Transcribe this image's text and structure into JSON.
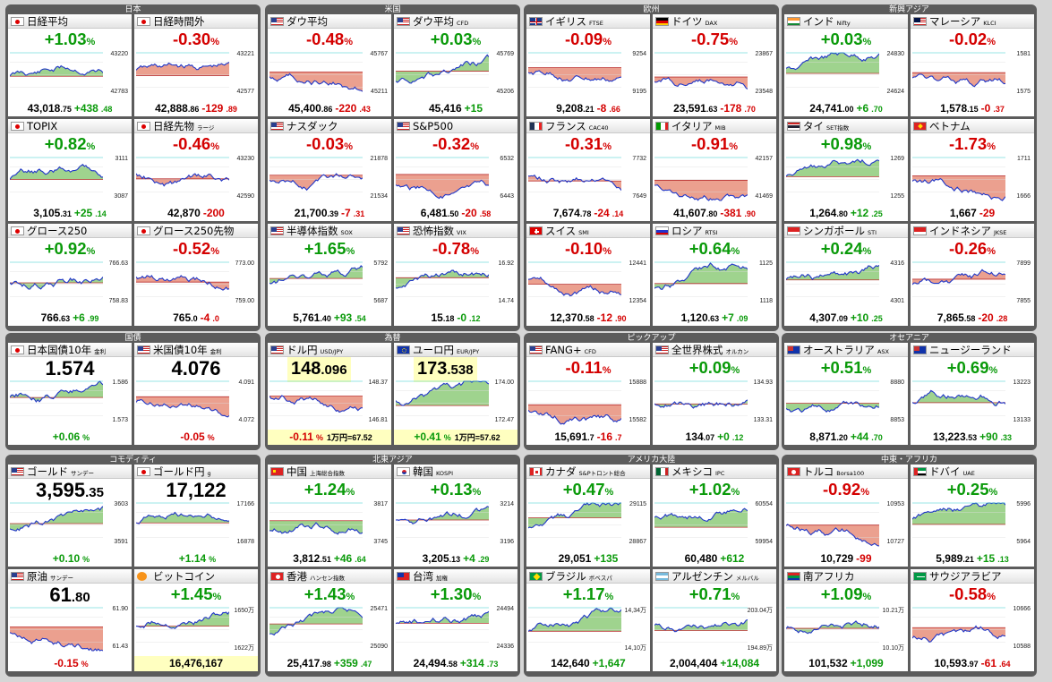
{
  "groups": [
    {
      "title": "日本",
      "cards": [
        {
          "name": "日経平均",
          "sub": "",
          "flag": "jp",
          "chg": "+1.03",
          "unit": "%",
          "dir": "up",
          "val": "43,018",
          "valsub": ".75",
          "diff": "+438",
          "diffsub": ".48",
          "ddir": "up",
          "hi": "43220",
          "lo": "42783"
        },
        {
          "name": "日経時間外",
          "sub": "",
          "flag": "jp",
          "chg": "-0.30",
          "unit": "%",
          "dir": "dn",
          "val": "42,888",
          "valsub": ".86",
          "diff": "-129",
          "diffsub": ".89",
          "ddir": "dn",
          "hi": "43221",
          "lo": "42577"
        },
        {
          "name": "TOPIX",
          "sub": "",
          "flag": "jp",
          "chg": "+0.82",
          "unit": "%",
          "dir": "up",
          "val": "3,105",
          "valsub": ".31",
          "diff": "+25",
          "diffsub": ".14",
          "ddir": "up",
          "hi": "3111",
          "lo": "3087"
        },
        {
          "name": "日経先物",
          "sub": "ラージ",
          "flag": "jp",
          "chg": "-0.46",
          "unit": "%",
          "dir": "dn",
          "val": "42,870",
          "valsub": "",
          "diff": "-200",
          "diffsub": "",
          "ddir": "dn",
          "hi": "43230",
          "lo": "42590"
        },
        {
          "name": "グロース250",
          "sub": "",
          "flag": "jp",
          "chg": "+0.92",
          "unit": "%",
          "dir": "up",
          "val": "766",
          "valsub": ".63",
          "diff": "+6",
          "diffsub": ".99",
          "ddir": "up",
          "hi": "766.63",
          "lo": "758.83"
        },
        {
          "name": "グロース250先物",
          "sub": "",
          "flag": "jp",
          "chg": "-0.52",
          "unit": "%",
          "dir": "dn",
          "val": "765",
          "valsub": ".0",
          "diff": "-4",
          "diffsub": ".0",
          "ddir": "dn",
          "hi": "773.00",
          "lo": "759.00"
        }
      ]
    },
    {
      "title": "米国",
      "cards": [
        {
          "name": "ダウ平均",
          "sub": "",
          "flag": "us",
          "chg": "-0.48",
          "unit": "%",
          "dir": "dn",
          "val": "45,400",
          "valsub": ".86",
          "diff": "-220",
          "diffsub": ".43",
          "ddir": "dn",
          "hi": "45767",
          "lo": "45211"
        },
        {
          "name": "ダウ平均",
          "sub": "CFD",
          "flag": "us",
          "chg": "+0.03",
          "unit": "%",
          "dir": "up",
          "val": "45,416",
          "valsub": "",
          "diff": "+15",
          "diffsub": "",
          "ddir": "up",
          "hi": "45769",
          "lo": "45206"
        },
        {
          "name": "ナスダック",
          "sub": "",
          "flag": "us",
          "chg": "-0.03",
          "unit": "%",
          "dir": "dn",
          "val": "21,700",
          "valsub": ".39",
          "diff": "-7",
          "diffsub": ".31",
          "ddir": "dn",
          "hi": "21878",
          "lo": "21534"
        },
        {
          "name": "S&P500",
          "sub": "",
          "flag": "us",
          "chg": "-0.32",
          "unit": "%",
          "dir": "dn",
          "val": "6,481",
          "valsub": ".50",
          "diff": "-20",
          "diffsub": ".58",
          "ddir": "dn",
          "hi": "6532",
          "lo": "6443"
        },
        {
          "name": "半導体指数",
          "sub": "SOX",
          "flag": "us",
          "chg": "+1.65",
          "unit": "%",
          "dir": "up",
          "val": "5,761",
          "valsub": ".40",
          "diff": "+93",
          "diffsub": ".54",
          "ddir": "up",
          "hi": "5792",
          "lo": "5687"
        },
        {
          "name": "恐怖指数",
          "sub": "VIX",
          "flag": "us",
          "chg": "-0.78",
          "unit": "%",
          "dir": "dn",
          "val": "15",
          "valsub": ".18",
          "diff": "-0",
          "diffsub": ".12",
          "ddir": "up",
          "hi": "16.92",
          "lo": "14.74"
        }
      ]
    },
    {
      "title": "欧州",
      "cards": [
        {
          "name": "イギリス",
          "sub": "FTSE",
          "flag": "gb",
          "chg": "-0.09",
          "unit": "%",
          "dir": "dn",
          "val": "9,208",
          "valsub": ".21",
          "diff": "-8",
          "diffsub": ".66",
          "ddir": "dn",
          "hi": "9254",
          "lo": "9195"
        },
        {
          "name": "ドイツ",
          "sub": "DAX",
          "flag": "de",
          "chg": "-0.75",
          "unit": "%",
          "dir": "dn",
          "val": "23,591",
          "valsub": ".63",
          "diff": "-178",
          "diffsub": ".70",
          "ddir": "dn",
          "hi": "23867",
          "lo": "23548"
        },
        {
          "name": "フランス",
          "sub": "CAC40",
          "flag": "fr",
          "chg": "-0.31",
          "unit": "%",
          "dir": "dn",
          "val": "7,674",
          "valsub": ".78",
          "diff": "-24",
          "diffsub": ".14",
          "ddir": "dn",
          "hi": "7732",
          "lo": "7649"
        },
        {
          "name": "イタリア",
          "sub": "MIB",
          "flag": "it",
          "chg": "-0.91",
          "unit": "%",
          "dir": "dn",
          "val": "41,607",
          "valsub": ".80",
          "diff": "-381",
          "diffsub": ".90",
          "ddir": "dn",
          "hi": "42157",
          "lo": "41469"
        },
        {
          "name": "スイス",
          "sub": "SMI",
          "flag": "ch",
          "chg": "-0.10",
          "unit": "%",
          "dir": "dn",
          "val": "12,370",
          "valsub": ".58",
          "diff": "-12",
          "diffsub": ".90",
          "ddir": "dn",
          "hi": "12441",
          "lo": "12354"
        },
        {
          "name": "ロシア",
          "sub": "RTSI",
          "flag": "ru",
          "chg": "+0.64",
          "unit": "%",
          "dir": "up",
          "val": "1,120",
          "valsub": ".63",
          "diff": "+7",
          "diffsub": ".09",
          "ddir": "up",
          "hi": "1125",
          "lo": "1118"
        }
      ]
    },
    {
      "title": "新興アジア",
      "cards": [
        {
          "name": "インド",
          "sub": "Nifty",
          "flag": "in",
          "chg": "+0.03",
          "unit": "%",
          "dir": "up",
          "val": "24,741",
          "valsub": ".00",
          "diff": "+6",
          "diffsub": ".70",
          "ddir": "up",
          "hi": "24830",
          "lo": "24624"
        },
        {
          "name": "マレーシア",
          "sub": "KLCI",
          "flag": "my",
          "chg": "-0.02",
          "unit": "%",
          "dir": "dn",
          "val": "1,578",
          "valsub": ".15",
          "diff": "-0",
          "diffsub": ".37",
          "ddir": "dn",
          "hi": "1581",
          "lo": "1575"
        },
        {
          "name": "タイ",
          "sub": "SET指数",
          "flag": "th",
          "chg": "+0.98",
          "unit": "%",
          "dir": "up",
          "val": "1,264",
          "valsub": ".80",
          "diff": "+12",
          "diffsub": ".25",
          "ddir": "up",
          "hi": "1269",
          "lo": "1255"
        },
        {
          "name": "ベトナム",
          "sub": "",
          "flag": "vn",
          "chg": "-1.73",
          "unit": "%",
          "dir": "dn",
          "val": "1,667",
          "valsub": "",
          "diff": "-29",
          "diffsub": "",
          "ddir": "dn",
          "hi": "1711",
          "lo": "1666"
        },
        {
          "name": "シンガポール",
          "sub": "STI",
          "flag": "sg",
          "chg": "+0.24",
          "unit": "%",
          "dir": "up",
          "val": "4,307",
          "valsub": ".09",
          "diff": "+10",
          "diffsub": ".25",
          "ddir": "up",
          "hi": "4316",
          "lo": "4301"
        },
        {
          "name": "インドネシア",
          "sub": "JKSE",
          "flag": "id",
          "chg": "-0.26",
          "unit": "%",
          "dir": "dn",
          "val": "7,865",
          "valsub": ".58",
          "diff": "-20",
          "diffsub": ".28",
          "ddir": "dn",
          "hi": "7899",
          "lo": "7855"
        }
      ]
    },
    {
      "title": "国債",
      "cards": [
        {
          "name": "日本国債10年",
          "sub": "金利",
          "flag": "jp",
          "big": "1.574",
          "bigsub": "",
          "diff": "+0.06",
          "diffsub": "",
          "unit2": "%",
          "ddir": "up",
          "hi": "1.586",
          "lo": "1.573"
        },
        {
          "name": "米国債10年",
          "sub": "金利",
          "flag": "us",
          "big": "4.076",
          "bigsub": "",
          "diff": "-0.05",
          "diffsub": "",
          "unit2": "%",
          "ddir": "dn",
          "hi": "4.091",
          "lo": "4.072"
        }
      ]
    },
    {
      "title": "為替",
      "cards": [
        {
          "name": "ドル円",
          "sub": "USD/JPY",
          "flag": "us",
          "big": "148",
          "bigsub": ".096",
          "diff": "-0.11",
          "diffsub": "",
          "unit2": "%",
          "ddir": "dn",
          "extra": "1万円=67.52",
          "hi": "148.37",
          "lo": "146.81"
        },
        {
          "name": "ユーロ円",
          "sub": "EUR/JPY",
          "flag": "eu",
          "big": "173",
          "bigsub": ".538",
          "diff": "+0.41",
          "diffsub": "",
          "unit2": "%",
          "ddir": "up",
          "extra": "1万円=57.62",
          "hi": "174.00",
          "lo": "172.47"
        }
      ]
    },
    {
      "title": "ピックアップ",
      "cards": [
        {
          "name": "FANG+",
          "sub": "CFD",
          "flag": "us",
          "chg": "-0.11",
          "unit": "%",
          "dir": "dn",
          "val": "15,691",
          "valsub": ".7",
          "diff": "-16",
          "diffsub": ".7",
          "ddir": "dn",
          "hi": "15888",
          "lo": "15582"
        },
        {
          "name": "全世界株式",
          "sub": "オルカン",
          "flag": "us",
          "chg": "+0.09",
          "unit": "%",
          "dir": "up",
          "val": "134",
          "valsub": ".07",
          "diff": "+0",
          "diffsub": ".12",
          "ddir": "up",
          "hi": "134.93",
          "lo": "133.31"
        }
      ]
    },
    {
      "title": "オセアニア",
      "cards": [
        {
          "name": "オーストラリア",
          "sub": "ASX",
          "flag": "au",
          "chg": "+0.51",
          "unit": "%",
          "dir": "up",
          "val": "8,871",
          "valsub": ".20",
          "diff": "+44",
          "diffsub": ".70",
          "ddir": "up",
          "hi": "8880",
          "lo": "8853"
        },
        {
          "name": "ニュージーランド",
          "sub": "",
          "flag": "nz",
          "chg": "+0.69",
          "unit": "%",
          "dir": "up",
          "val": "13,223",
          "valsub": ".53",
          "diff": "+90",
          "diffsub": ".33",
          "ddir": "up",
          "hi": "13223",
          "lo": "13133"
        }
      ]
    },
    {
      "title": "コモディティ",
      "cards": [
        {
          "name": "ゴールド",
          "sub": "サンデー",
          "flag": "us",
          "big": "3,595",
          "bigsub": ".35",
          "diff": "+0.10",
          "diffsub": "",
          "unit2": "%",
          "ddir": "up",
          "hi": "3603",
          "lo": "3591"
        },
        {
          "name": "ゴールド円",
          "sub": "g",
          "flag": "jp",
          "big": "17,122",
          "bigsub": "",
          "diff": "+1.14",
          "diffsub": "",
          "unit2": "%",
          "ddir": "up",
          "hi": "17166",
          "lo": "16878"
        },
        {
          "name": "原油",
          "sub": "サンデー",
          "flag": "us",
          "big": "61",
          "bigsub": ".80",
          "diff": "-0.15",
          "diffsub": "",
          "unit2": "%",
          "ddir": "dn",
          "hi": "61.90",
          "lo": "61.43"
        },
        {
          "name": "ビットコイン",
          "sub": "",
          "flag": "btc",
          "chg": "+1.45",
          "unit": "%",
          "dir": "up",
          "val": "16,476,167",
          "valsub": "",
          "diff": "",
          "diffsub": "",
          "ddir": "up",
          "hi": "1650万",
          "lo": "1622万"
        }
      ]
    },
    {
      "title": "北東アジア",
      "cards": [
        {
          "name": "中国",
          "sub": "上海総合指数",
          "flag": "cn",
          "chg": "+1.24",
          "unit": "%",
          "dir": "up",
          "val": "3,812",
          "valsub": ".51",
          "diff": "+46",
          "diffsub": ".64",
          "ddir": "up",
          "hi": "3817",
          "lo": "3745"
        },
        {
          "name": "韓国",
          "sub": "KOSPI",
          "flag": "kr",
          "chg": "+0.13",
          "unit": "%",
          "dir": "up",
          "val": "3,205",
          "valsub": ".13",
          "diff": "+4",
          "diffsub": ".29",
          "ddir": "up",
          "hi": "3214",
          "lo": "3196"
        },
        {
          "name": "香港",
          "sub": "ハンセン指数",
          "flag": "hk",
          "chg": "+1.43",
          "unit": "%",
          "dir": "up",
          "val": "25,417",
          "valsub": ".98",
          "diff": "+359",
          "diffsub": ".47",
          "ddir": "up",
          "hi": "25471",
          "lo": "25090"
        },
        {
          "name": "台湾",
          "sub": "加権",
          "flag": "tw",
          "chg": "+1.30",
          "unit": "%",
          "dir": "up",
          "val": "24,494",
          "valsub": ".58",
          "diff": "+314",
          "diffsub": ".73",
          "ddir": "up",
          "hi": "24494",
          "lo": "24336"
        }
      ]
    },
    {
      "title": "アメリカ大陸",
      "cards": [
        {
          "name": "カナダ",
          "sub": "S&Pトロント総合",
          "flag": "ca",
          "chg": "+0.47",
          "unit": "%",
          "dir": "up",
          "val": "29,051",
          "valsub": "",
          "diff": "+135",
          "diffsub": "",
          "ddir": "up",
          "hi": "29115",
          "lo": "28867"
        },
        {
          "name": "メキシコ",
          "sub": "IPC",
          "flag": "mx",
          "chg": "+1.02",
          "unit": "%",
          "dir": "up",
          "val": "60,480",
          "valsub": "",
          "diff": "+612",
          "diffsub": "",
          "ddir": "up",
          "hi": "60554",
          "lo": "59954"
        },
        {
          "name": "ブラジル",
          "sub": "ボベスパ",
          "flag": "br",
          "chg": "+1.17",
          "unit": "%",
          "dir": "up",
          "val": "142,640",
          "valsub": "",
          "diff": "+1,647",
          "diffsub": "",
          "ddir": "up",
          "hi": "14,34万",
          "lo": "14,10万"
        },
        {
          "name": "アルゼンチン",
          "sub": "メルバル",
          "flag": "ar",
          "chg": "+0.71",
          "unit": "%",
          "dir": "up",
          "val": "2,004,404",
          "valsub": "",
          "diff": "+14,084",
          "diffsub": "",
          "ddir": "up",
          "hi": "203.04万",
          "lo": "194.89万"
        }
      ]
    },
    {
      "title": "中東・アフリカ",
      "cards": [
        {
          "name": "トルコ",
          "sub": "Borsa100",
          "flag": "tr",
          "chg": "-0.92",
          "unit": "%",
          "dir": "dn",
          "val": "10,729",
          "valsub": "",
          "diff": "-99",
          "diffsub": "",
          "ddir": "dn",
          "hi": "10953",
          "lo": "10727"
        },
        {
          "name": "ドバイ",
          "sub": "UAE",
          "flag": "ae",
          "chg": "+0.25",
          "unit": "%",
          "dir": "up",
          "val": "5,989",
          "valsub": ".21",
          "diff": "+15",
          "diffsub": ".13",
          "ddir": "up",
          "hi": "5996",
          "lo": "5964"
        },
        {
          "name": "南アフリカ",
          "sub": "",
          "flag": "za",
          "chg": "+1.09",
          "unit": "%",
          "dir": "up",
          "val": "101,532",
          "valsub": "",
          "diff": "+1,099",
          "diffsub": "",
          "ddir": "up",
          "hi": "10.21万",
          "lo": "10.10万"
        },
        {
          "name": "サウジアラビア",
          "sub": "",
          "flag": "sa",
          "chg": "-0.58",
          "unit": "%",
          "dir": "dn",
          "val": "10,593",
          "valsub": ".97",
          "diff": "-61",
          "diffsub": ".64",
          "ddir": "dn",
          "hi": "10666",
          "lo": "10588"
        }
      ]
    }
  ]
}
